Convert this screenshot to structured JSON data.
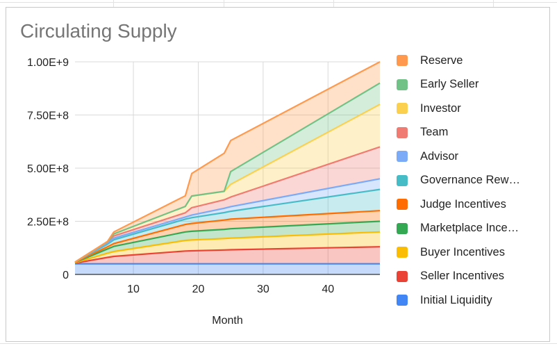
{
  "chart_data": {
    "type": "area",
    "stacked": true,
    "title": "Circulating Supply",
    "xlabel": "Month",
    "ylabel": "",
    "xlim": [
      1,
      48
    ],
    "ylim": [
      0,
      1000000000
    ],
    "x_ticks": [
      10,
      20,
      30,
      40
    ],
    "y_ticks": [
      {
        "value": 0,
        "label": "0"
      },
      {
        "value": 250000000,
        "label": "2.50E+8"
      },
      {
        "value": 500000000,
        "label": "5.00E+8"
      },
      {
        "value": 750000000,
        "label": "7.50E+8"
      },
      {
        "value": 1000000000,
        "label": "1.00E+9"
      }
    ],
    "grid": true,
    "legend_position": "right",
    "x": [
      1,
      6,
      7,
      18,
      19,
      24,
      25,
      48
    ],
    "series_note_order": "stacked bottom to top",
    "series": [
      {
        "name": "Initial Liquidity",
        "color": "#4285f4",
        "values": [
          50000000,
          50000000,
          50000000,
          50000000,
          50000000,
          50000000,
          50000000,
          50000000
        ]
      },
      {
        "name": "Seller Incentives",
        "color": "#ea4335",
        "values": [
          3000000,
          30000000,
          35000000,
          60000000,
          61000000,
          65000000,
          66000000,
          80000000
        ]
      },
      {
        "name": "Buyer Incentives",
        "color": "#fbbc04",
        "values": [
          2000000,
          20000000,
          23000000,
          50000000,
          51000000,
          54000000,
          55000000,
          70000000
        ]
      },
      {
        "name": "Marketplace Ince…",
        "color": "#34a853",
        "values": [
          1000000,
          20000000,
          24000000,
          40000000,
          41000000,
          43000000,
          44000000,
          50000000
        ]
      },
      {
        "name": "Judge Incentives",
        "color": "#ff6d01",
        "values": [
          1000000,
          10000000,
          13000000,
          35000000,
          37000000,
          44000000,
          45000000,
          50000000
        ]
      },
      {
        "name": "Governance Rew…",
        "color": "#46bdc6",
        "values": [
          1000000,
          12000000,
          18000000,
          25000000,
          27000000,
          35000000,
          37000000,
          100000000
        ]
      },
      {
        "name": "Advisor",
        "color": "#7baaf7",
        "values": [
          0,
          6000000,
          8000000,
          10000000,
          12000000,
          20000000,
          22000000,
          50000000
        ]
      },
      {
        "name": "Team",
        "color": "#f07b72",
        "values": [
          0,
          6000000,
          10000000,
          20000000,
          35000000,
          40000000,
          45000000,
          150000000
        ]
      },
      {
        "name": "Investor",
        "color": "#fcd04f",
        "values": [
          0,
          0,
          10000000,
          30000000,
          55000000,
          40000000,
          60000000,
          200000000
        ]
      },
      {
        "name": "Early Seller",
        "color": "#71c287",
        "values": [
          0,
          0,
          0,
          0,
          0,
          0,
          60000000,
          100000000
        ]
      },
      {
        "name": "Reserve",
        "color": "#ff994d",
        "values": [
          0,
          1000000,
          9000000,
          50000000,
          106000000,
          179000000,
          146000000,
          100000000
        ]
      }
    ]
  }
}
